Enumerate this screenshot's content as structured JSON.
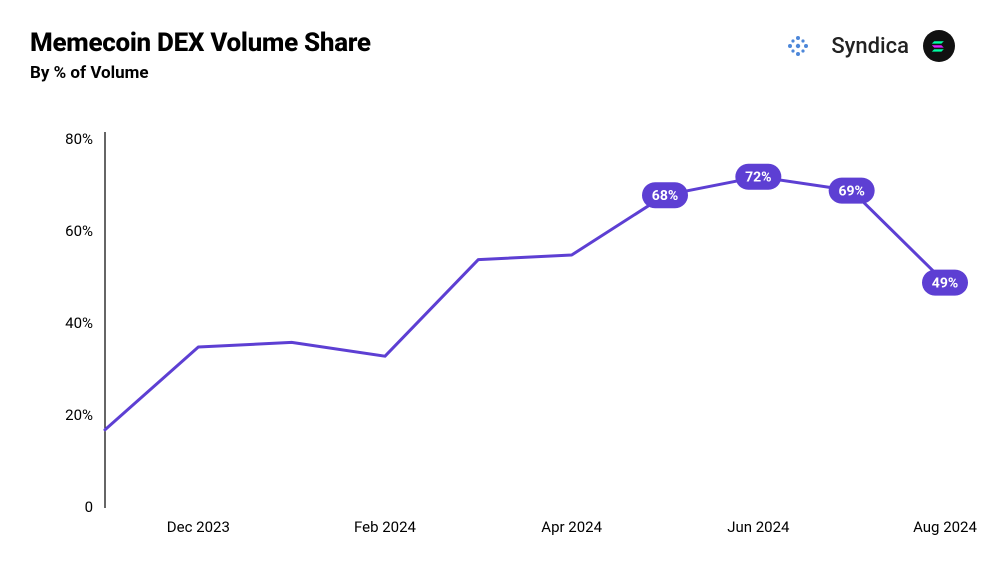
{
  "header": {
    "title": "Memecoin DEX Volume Share",
    "subtitle": "By % of Volume",
    "brand_name": "Syndica"
  },
  "chart": {
    "type": "line",
    "line_color": "#5d3fd3",
    "line_width": 3,
    "background_color": "#ffffff",
    "axis_color": "#000000",
    "label_fontsize": 15,
    "callout_bg": "#5d3fd3",
    "callout_text_color": "#ffffff",
    "callout_fontsize": 14,
    "ylim": [
      0,
      80
    ],
    "ytick_step": 20,
    "y_ticks": [
      0,
      20,
      40,
      60,
      80
    ],
    "y_tick_labels": [
      "0",
      "20%",
      "40%",
      "60%",
      "80%"
    ],
    "x_index_range": [
      0,
      9
    ],
    "x_ticks": [
      {
        "index": 1,
        "label": "Dec 2023"
      },
      {
        "index": 3,
        "label": "Feb 2024"
      },
      {
        "index": 5,
        "label": "Apr 2024"
      },
      {
        "index": 7,
        "label": "Jun 2024"
      },
      {
        "index": 9,
        "label": "Aug 2024"
      }
    ],
    "series": [
      {
        "index": 0,
        "value": 17
      },
      {
        "index": 1,
        "value": 35
      },
      {
        "index": 2,
        "value": 36
      },
      {
        "index": 3,
        "value": 33
      },
      {
        "index": 4,
        "value": 54
      },
      {
        "index": 5,
        "value": 55
      },
      {
        "index": 6,
        "value": 68,
        "callout": "68%"
      },
      {
        "index": 7,
        "value": 72,
        "callout": "72%"
      },
      {
        "index": 8,
        "value": 69,
        "callout": "69%"
      },
      {
        "index": 9,
        "value": 49,
        "callout": "49%"
      }
    ]
  }
}
